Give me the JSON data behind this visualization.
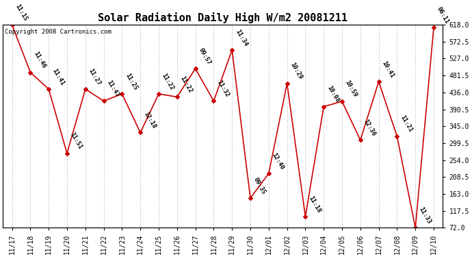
{
  "title": "Solar Radiation Daily High W/m2 20081211",
  "copyright": "Copyright 2008 Cartronics.com",
  "dates": [
    "11/17",
    "11/18",
    "11/19",
    "11/20",
    "11/21",
    "11/22",
    "11/23",
    "11/24",
    "11/25",
    "11/26",
    "11/27",
    "11/28",
    "11/29",
    "11/30",
    "12/01",
    "12/02",
    "12/03",
    "12/04",
    "12/05",
    "12/06",
    "12/07",
    "12/08",
    "12/09",
    "12/10"
  ],
  "values": [
    618,
    490,
    445,
    272,
    445,
    413,
    432,
    328,
    432,
    424,
    500,
    413,
    550,
    152,
    218,
    460,
    102,
    398,
    412,
    308,
    465,
    318,
    72,
    610
  ],
  "labels": [
    "11:15",
    "11:46",
    "11:41",
    "11:51",
    "11:27",
    "11:47",
    "11:25",
    "12:18",
    "11:22",
    "11:22",
    "09:57",
    "11:32",
    "11:34",
    "09:35",
    "12:40",
    "10:29",
    "11:18",
    "10:08",
    "10:59",
    "12:36",
    "10:41",
    "11:21",
    "11:33",
    "06:11"
  ],
  "yticks": [
    72.0,
    117.5,
    163.0,
    208.5,
    254.0,
    299.5,
    345.0,
    390.5,
    436.0,
    481.5,
    527.0,
    572.5,
    618.0
  ],
  "line_color": "#cc0000",
  "bg_color": "#ffffff",
  "grid_color": "#cccccc",
  "title_fontsize": 11,
  "label_fontsize": 6.5,
  "copyright_fontsize": 6.5,
  "tick_fontsize": 7,
  "xtick_fontsize": 7
}
